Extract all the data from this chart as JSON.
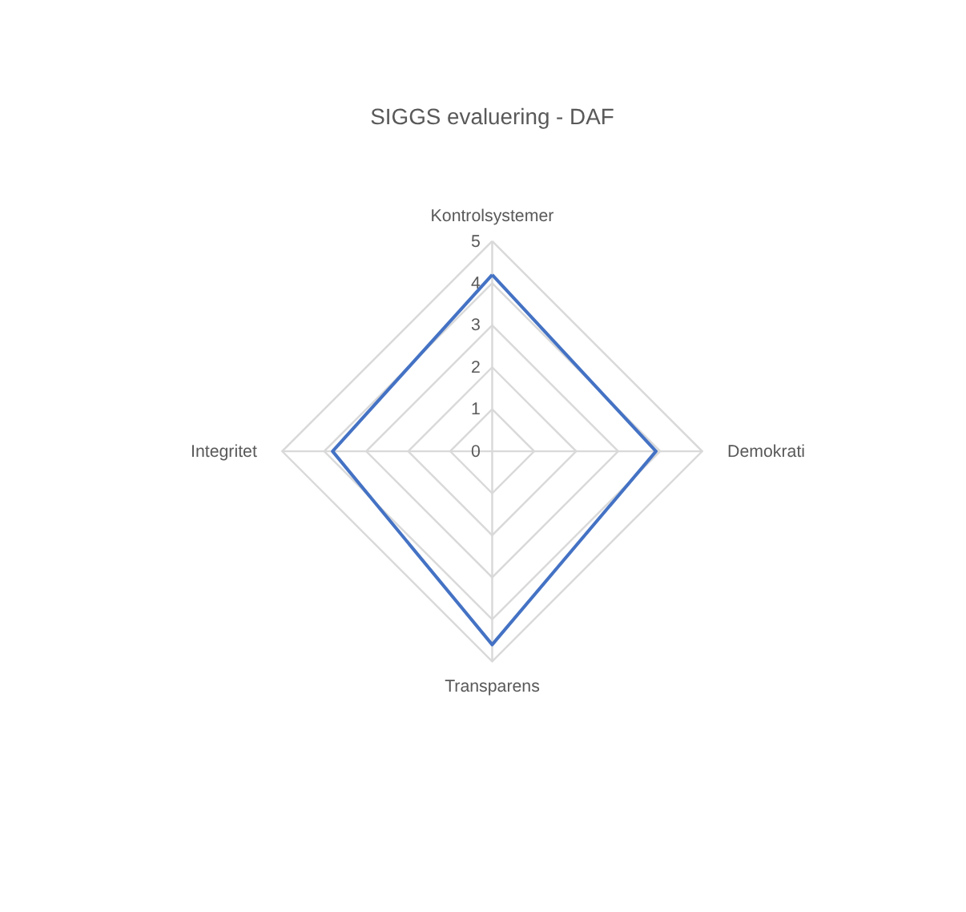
{
  "chart_data": {
    "type": "radar",
    "title": "SIGGS evaluering - DAF",
    "categories": [
      "Kontrolsystemer",
      "Demokrati",
      "Transparens",
      "Integritet"
    ],
    "series": [
      {
        "color": "#4472c4",
        "values": [
          4.2,
          3.9,
          4.6,
          3.8
        ]
      }
    ],
    "ylim": [
      0,
      5
    ],
    "yticks": [
      0,
      1,
      2,
      3,
      4,
      5
    ],
    "grid": true,
    "marker": "none",
    "line_style": "solid"
  }
}
